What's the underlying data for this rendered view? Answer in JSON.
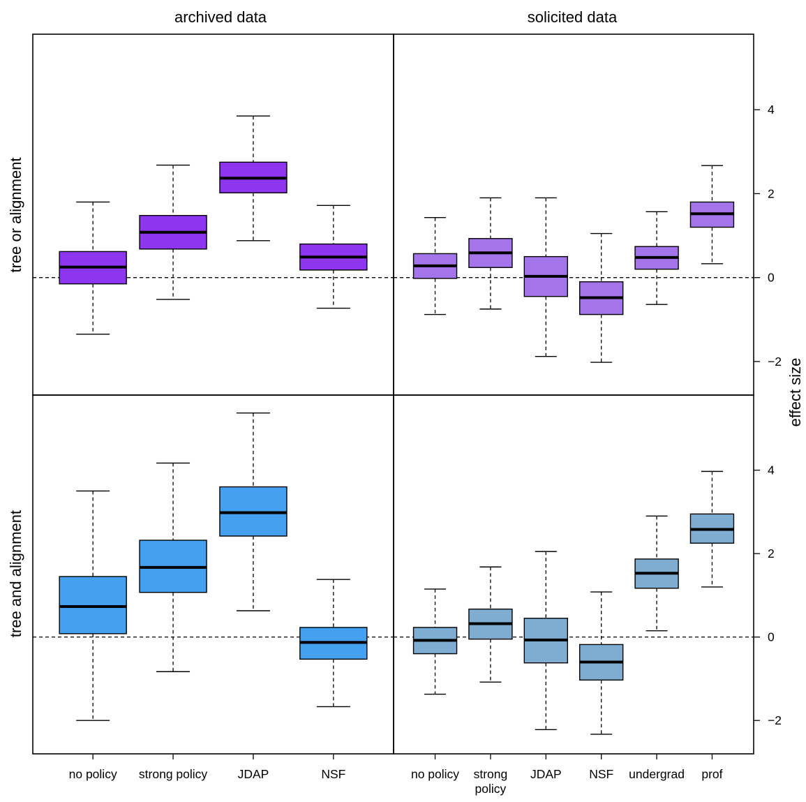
{
  "chart_data": {
    "type": "box",
    "column_titles": [
      "archived data",
      "solicited data"
    ],
    "row_titles": [
      "tree or alignment",
      "tree and alignment"
    ],
    "ylabel": "effect size",
    "y_ticks": [
      -2,
      0,
      2,
      4
    ],
    "ylim": [
      -2.8,
      5.8
    ],
    "reference_line": 0,
    "panels": [
      {
        "row": 0,
        "col": 0,
        "color": "#8e35ef",
        "boxes": [
          {
            "label": "no policy",
            "whisker_low": -1.35,
            "q1": -0.15,
            "median": 0.25,
            "q3": 0.62,
            "whisker_high": 1.8
          },
          {
            "label": "strong policy",
            "whisker_low": -0.52,
            "q1": 0.68,
            "median": 1.08,
            "q3": 1.48,
            "whisker_high": 2.68
          },
          {
            "label": "JDAP",
            "whisker_low": 0.88,
            "q1": 2.02,
            "median": 2.37,
            "q3": 2.75,
            "whisker_high": 3.85
          },
          {
            "label": "NSF",
            "whisker_low": -0.73,
            "q1": 0.18,
            "median": 0.49,
            "q3": 0.8,
            "whisker_high": 1.72
          }
        ]
      },
      {
        "row": 0,
        "col": 1,
        "color": "#a374ea",
        "boxes": [
          {
            "label": "no policy",
            "whisker_low": -0.88,
            "q1": -0.02,
            "median": 0.28,
            "q3": 0.57,
            "whisker_high": 1.43
          },
          {
            "label": "strong policy",
            "whisker_low": -0.75,
            "q1": 0.24,
            "median": 0.59,
            "q3": 0.93,
            "whisker_high": 1.9
          },
          {
            "label": "JDAP",
            "whisker_low": -1.88,
            "q1": -0.45,
            "median": 0.03,
            "q3": 0.5,
            "whisker_high": 1.9
          },
          {
            "label": "NSF",
            "whisker_low": -2.02,
            "q1": -0.88,
            "median": -0.48,
            "q3": -0.1,
            "whisker_high": 1.05
          },
          {
            "label": "undergrad",
            "whisker_low": -0.64,
            "q1": 0.2,
            "median": 0.48,
            "q3": 0.74,
            "whisker_high": 1.57
          },
          {
            "label": "prof",
            "whisker_low": 0.33,
            "q1": 1.2,
            "median": 1.52,
            "q3": 1.8,
            "whisker_high": 2.67
          }
        ]
      },
      {
        "row": 1,
        "col": 0,
        "color": "#45a0ef",
        "boxes": [
          {
            "label": "no policy",
            "whisker_low": -2.0,
            "q1": 0.08,
            "median": 0.73,
            "q3": 1.45,
            "whisker_high": 3.5
          },
          {
            "label": "strong policy",
            "whisker_low": -0.83,
            "q1": 1.07,
            "median": 1.67,
            "q3": 2.32,
            "whisker_high": 4.17
          },
          {
            "label": "JDAP",
            "whisker_low": 0.63,
            "q1": 2.42,
            "median": 2.98,
            "q3": 3.6,
            "whisker_high": 5.37
          },
          {
            "label": "NSF",
            "whisker_low": -1.67,
            "q1": -0.53,
            "median": -0.13,
            "q3": 0.23,
            "whisker_high": 1.38
          }
        ]
      },
      {
        "row": 1,
        "col": 1,
        "color": "#7fadd2",
        "boxes": [
          {
            "label": "no policy",
            "whisker_low": -1.37,
            "q1": -0.4,
            "median": -0.08,
            "q3": 0.23,
            "whisker_high": 1.15
          },
          {
            "label": "strong policy",
            "whisker_low": -1.08,
            "q1": -0.05,
            "median": 0.32,
            "q3": 0.67,
            "whisker_high": 1.68
          },
          {
            "label": "JDAP",
            "whisker_low": -2.22,
            "q1": -0.62,
            "median": -0.07,
            "q3": 0.45,
            "whisker_high": 2.05
          },
          {
            "label": "NSF",
            "whisker_low": -2.33,
            "q1": -1.03,
            "median": -0.6,
            "q3": -0.18,
            "whisker_high": 1.08
          },
          {
            "label": "undergrad",
            "whisker_low": 0.15,
            "q1": 1.17,
            "median": 1.53,
            "q3": 1.87,
            "whisker_high": 2.9
          },
          {
            "label": "prof",
            "whisker_low": 1.2,
            "q1": 2.25,
            "median": 2.58,
            "q3": 2.95,
            "whisker_high": 3.97
          }
        ]
      }
    ],
    "x_tick_labels": [
      [
        "no policy",
        "strong policy",
        "JDAP",
        "NSF"
      ],
      [
        "no policy",
        "strong\npolicy",
        "JDAP",
        "NSF",
        "undergrad",
        "prof"
      ]
    ]
  }
}
